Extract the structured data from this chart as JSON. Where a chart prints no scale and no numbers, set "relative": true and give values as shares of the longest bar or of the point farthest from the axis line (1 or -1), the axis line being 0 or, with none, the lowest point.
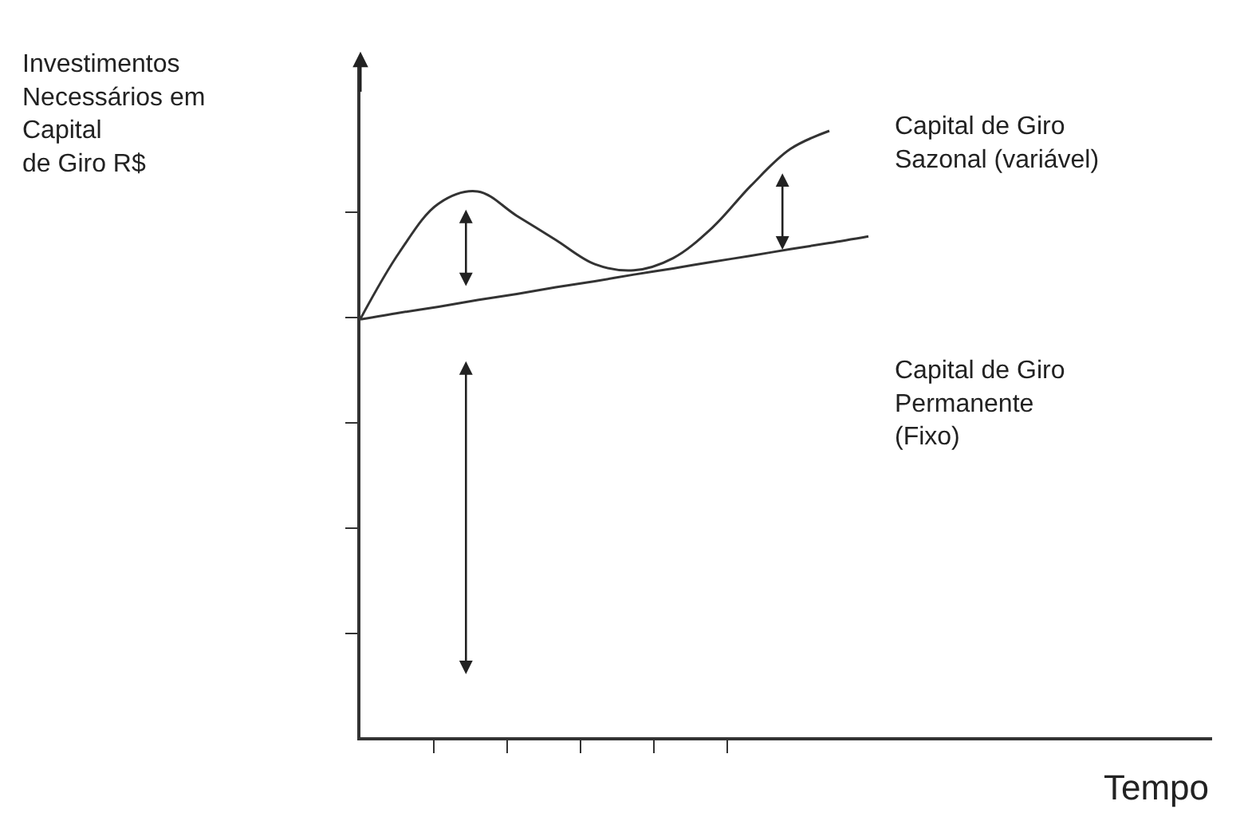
{
  "chart_data": {
    "type": "line",
    "relative": true,
    "marker": "none",
    "line_style": "solid",
    "categories": [
      null,
      null,
      null,
      null,
      null,
      null,
      null,
      null,
      null,
      null,
      null,
      null,
      null,
      null
    ],
    "series": [
      {
        "color": "#333333",
        "values": [
          0.69,
          0.8,
          0.88,
          0.9,
          0.86,
          0.82,
          0.78,
          0.77,
          0.79,
          0.84,
          0.91,
          0.97,
          1.0,
          null
        ]
      },
      {
        "color": "#333333",
        "values": [
          0.689,
          0.7,
          0.71,
          0.721,
          0.731,
          0.742,
          0.752,
          0.763,
          0.773,
          0.784,
          0.794,
          0.805,
          0.815,
          0.826
        ]
      }
    ],
    "annotations": [
      "Investimentos\nNecessários em\nCapital\nde Giro R$",
      "Tempo",
      "Capital de Giro\nSazonal (variável)",
      "Capital de Giro\nPermanente\n(Fixo)"
    ]
  }
}
